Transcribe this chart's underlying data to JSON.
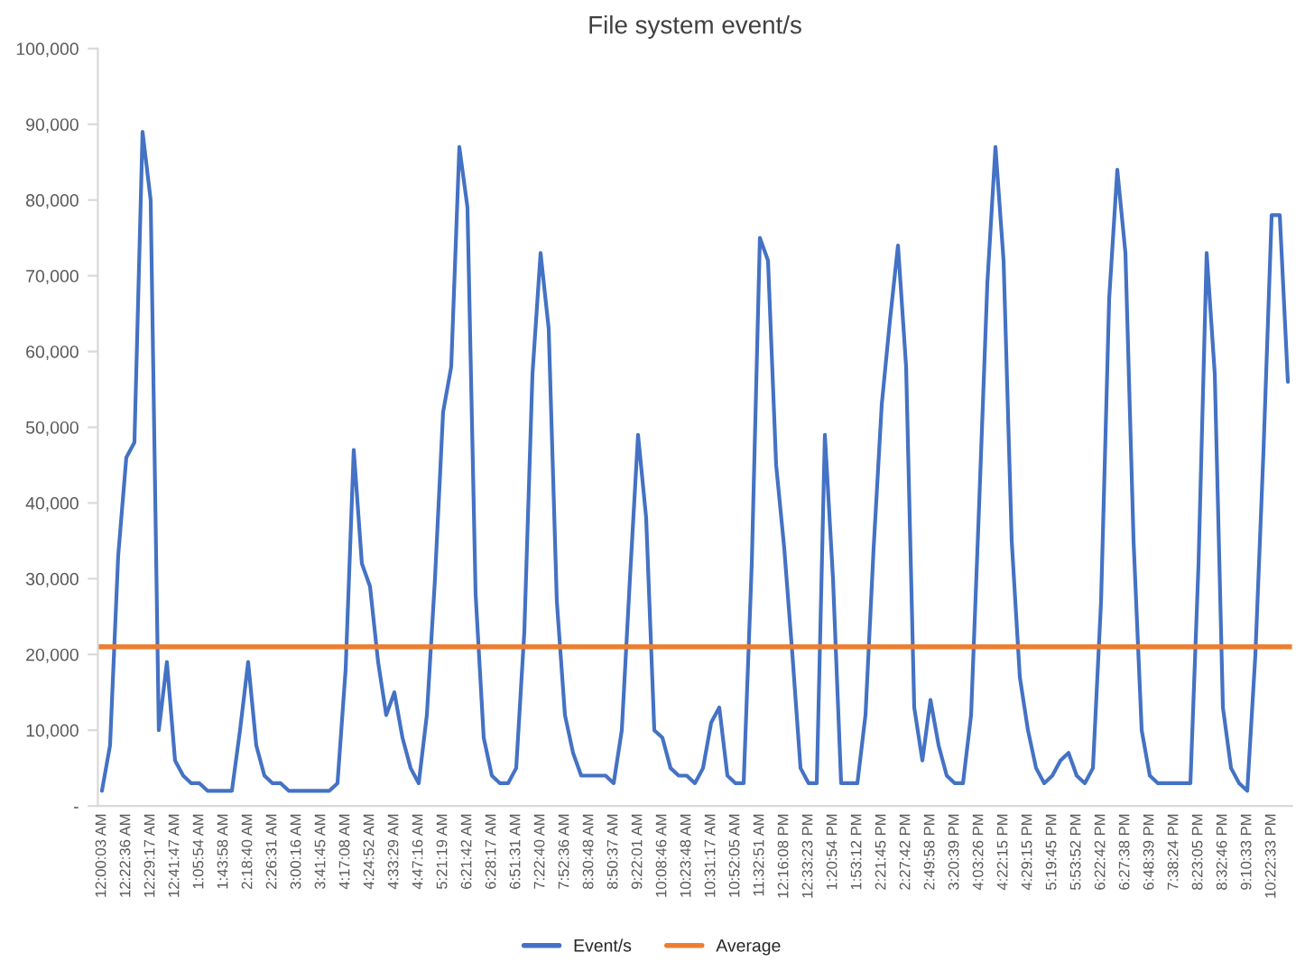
{
  "chart_data": {
    "type": "line",
    "title": "File system event/s",
    "categories": [
      "12:00:03 AM",
      null,
      null,
      "12:22:36 AM",
      null,
      null,
      "12:29:17 AM",
      null,
      null,
      "12:41:47 AM",
      null,
      null,
      "1:05:54 AM",
      null,
      null,
      "1:43:58 AM",
      null,
      null,
      "2:18:40 AM",
      null,
      null,
      "2:26:31 AM",
      null,
      null,
      "3:00:16 AM",
      null,
      null,
      "3:41:45 AM",
      null,
      null,
      "4:17:08 AM",
      null,
      null,
      "4:24:52 AM",
      null,
      null,
      "4:33:29 AM",
      null,
      null,
      "4:47:16 AM",
      null,
      null,
      "5:21:19 AM",
      null,
      null,
      "6:21:42 AM",
      null,
      null,
      "6:28:17 AM",
      null,
      null,
      "6:51:31 AM",
      null,
      null,
      "7:22:40 AM",
      null,
      null,
      "7:52:36 AM",
      null,
      null,
      "8:30:48 AM",
      null,
      null,
      "8:50:37 AM",
      null,
      null,
      "9:22:01 AM",
      null,
      null,
      "10:08:46 AM",
      null,
      null,
      "10:23:48 AM",
      null,
      null,
      "10:31:17 AM",
      null,
      null,
      "10:52:05 AM",
      null,
      null,
      "11:32:51 AM",
      null,
      null,
      "12:16:08 PM",
      null,
      null,
      "12:33:23 PM",
      null,
      null,
      "1:20:54 PM",
      null,
      null,
      "1:53:12 PM",
      null,
      null,
      "2:21:45 PM",
      null,
      null,
      "2:27:42 PM",
      null,
      null,
      "2:49:58 PM",
      null,
      null,
      "3:20:39 PM",
      null,
      null,
      "4:03:26 PM",
      null,
      null,
      "4:22:15 PM",
      null,
      null,
      "4:29:15 PM",
      null,
      null,
      "5:19:45 PM",
      null,
      null,
      "5:53:52 PM",
      null,
      null,
      "6:22:42 PM",
      null,
      null,
      "6:27:38 PM",
      null,
      null,
      "6:48:39 PM",
      null,
      null,
      "7:38:24 PM",
      null,
      null,
      "8:23:05 PM",
      null,
      null,
      "8:32:46 PM",
      null,
      null,
      "9:10:33 PM",
      null,
      null,
      "10:22:33 PM",
      null,
      null
    ],
    "series": [
      {
        "name": "Event/s",
        "color": "#4472c4",
        "values": [
          2000,
          8000,
          33000,
          46000,
          48000,
          89000,
          80000,
          10000,
          19000,
          6000,
          4000,
          3000,
          3000,
          2000,
          2000,
          2000,
          2000,
          10000,
          19000,
          8000,
          4000,
          3000,
          3000,
          2000,
          2000,
          2000,
          2000,
          2000,
          2000,
          3000,
          18000,
          47000,
          32000,
          29000,
          19000,
          12000,
          15000,
          9000,
          5000,
          3000,
          12000,
          30000,
          52000,
          58000,
          87000,
          79000,
          28000,
          9000,
          4000,
          3000,
          3000,
          5000,
          23000,
          57000,
          73000,
          63000,
          27000,
          12000,
          7000,
          4000,
          4000,
          4000,
          4000,
          3000,
          10000,
          30000,
          49000,
          38000,
          10000,
          9000,
          5000,
          4000,
          4000,
          3000,
          5000,
          11000,
          13000,
          4000,
          3000,
          3000,
          32000,
          75000,
          72000,
          45000,
          34000,
          20000,
          5000,
          3000,
          3000,
          49000,
          30000,
          3000,
          3000,
          3000,
          12000,
          34000,
          53000,
          64000,
          74000,
          58000,
          13000,
          6000,
          14000,
          8000,
          4000,
          3000,
          3000,
          12000,
          40000,
          69000,
          87000,
          72000,
          35000,
          17000,
          10000,
          5000,
          3000,
          4000,
          6000,
          7000,
          4000,
          3000,
          5000,
          27000,
          67000,
          84000,
          73000,
          35000,
          10000,
          4000,
          3000,
          3000,
          3000,
          3000,
          3000,
          32000,
          73000,
          57000,
          13000,
          5000,
          3000,
          2000,
          20000,
          47000,
          78000,
          78000,
          56000
        ]
      }
    ],
    "ref_lines": [
      {
        "axis": "y",
        "value": 21000,
        "label": "Average",
        "color": "#ed7d31",
        "line_style": "solid"
      }
    ],
    "ylim": [
      0,
      100000
    ],
    "yticks": [
      {
        "value": 0,
        "label": "-"
      },
      {
        "value": 10000,
        "label": "10,000"
      },
      {
        "value": 20000,
        "label": "20,000"
      },
      {
        "value": 30000,
        "label": "30,000"
      },
      {
        "value": 40000,
        "label": "40,000"
      },
      {
        "value": 50000,
        "label": "50,000"
      },
      {
        "value": 60000,
        "label": "60,000"
      },
      {
        "value": 70000,
        "label": "70,000"
      },
      {
        "value": 80000,
        "label": "80,000"
      },
      {
        "value": 90000,
        "label": "90,000"
      },
      {
        "value": 100000,
        "label": "100,000"
      }
    ],
    "legend": "bottom",
    "marker": "none",
    "line_style": "solid"
  }
}
